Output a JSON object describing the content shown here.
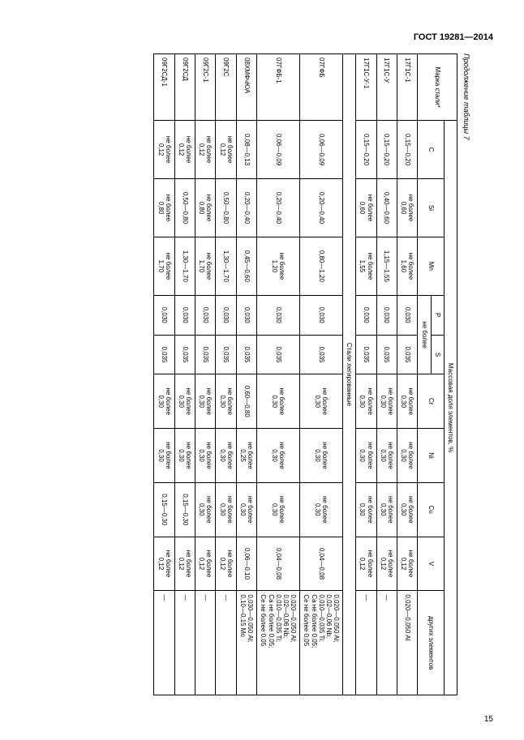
{
  "doc_header": "ГОСТ 19281—2014",
  "caption": "Продолжение таблицы 7",
  "page_number": "15",
  "columns": {
    "grade": "Марка стали*",
    "mass_fraction": "Массовая доля элементов, %",
    "C": "C",
    "Si": "Si",
    "Mn": "Mn",
    "P": "P",
    "S": "S",
    "Cr": "Cr",
    "Ni": "Ni",
    "Cu": "Cu",
    "V": "V",
    "other": "других элементов",
    "not_more": "не более"
  },
  "section": "Стали легированные",
  "labels": {
    "nb": "не более"
  },
  "rows1": [
    {
      "grade": "17Г1С-1",
      "C": "0,15—0,20",
      "Si": "не более\n0,60",
      "Mn": "не более\n1,60",
      "P": "0,030",
      "S": "0,035",
      "Cr": "не более\n0,30",
      "Ni": "не более\n0,30",
      "Cu": "не более\n0,30",
      "V": "не более\n0,12",
      "other": "0,020—0,050 Al"
    },
    {
      "grade": "17Г1С-У",
      "C": "0,15—0,20",
      "Si": "0,40—0,60",
      "Mn": "1,15—1,55",
      "P": "0,030",
      "S": "0,035",
      "Cr": "не более\n0,30",
      "Ni": "не более\n0,30",
      "Cu": "не более\n0,30",
      "V": "не более\n0,12",
      "other": "—"
    },
    {
      "grade": "17Г1С-У-1",
      "C": "0,15—0,20",
      "Si": "не более\n0,60",
      "Mn": "не более\n1,55",
      "P": "0,030",
      "S": "0,035",
      "Cr": "не более\n0,30",
      "Ni": "не более\n0,30",
      "Cu": "не более\n0,30",
      "V": "не более\n0,12",
      "other": "—"
    }
  ],
  "rows2": [
    {
      "grade": "07ГФБ",
      "C": "0,06—0,09",
      "Si": "0,20—0,40",
      "Mn": "0,80—1,20",
      "P": "0,030",
      "S": "0,035",
      "Cr": "не более\n0,30",
      "Ni": "не более\n0,30",
      "Cu": "не более\n0,30",
      "V": "0,04—0,08",
      "other": "0,020—0,050 Al;\n0,02—0,06 Nb;\n0,010—0,035 Ti;\nCa не более 0,05;\nCe не более 0,05"
    },
    {
      "grade": "07ГФБ-1",
      "C": "0,06—0,09",
      "Si": "0,20—0,40",
      "Mn": "не более\n1,20",
      "P": "0,030",
      "S": "0,035",
      "Cr": "не более\n0,30",
      "Ni": "не более\n0,30",
      "Cu": "не более\n0,30",
      "V": "0,04—0,08",
      "other": "0,020—0,050 Al;\n0,02—0,06 Nb;\n0,010—0,035 Ti;\nCa не более 0,05;\nCe не более 0,05"
    },
    {
      "grade": "08ХМФчЮА",
      "C": "0,08—0,13",
      "Si": "0,20—0,40",
      "Mn": "0,45—0,60",
      "P": "0,030",
      "S": "0,035",
      "Cr": "0,60—0,80",
      "Ni": "не более\n0,25",
      "Cu": "не более\n0,30",
      "V": "0,06—0,10",
      "other": "0,030—0,050 Al;\n0,10—0,15 Mo"
    },
    {
      "grade": "09Г2С",
      "C": "не более\n0,12",
      "Si": "0,50—0,80",
      "Mn": "1,30—1,70",
      "P": "0,030",
      "S": "0,035",
      "Cr": "не более\n0,30",
      "Ni": "не более\n0,30",
      "Cu": "не более\n0,30",
      "V": "не более\n0,12",
      "other": "—"
    },
    {
      "grade": "09Г2С-1",
      "C": "не более\n0,12",
      "Si": "не более\n0,80",
      "Mn": "не более\n1,70",
      "P": "0,030",
      "S": "0,035",
      "Cr": "не более\n0,30",
      "Ni": "не более\n0,30",
      "Cu": "не более\n0,30",
      "V": "не более\n0,12",
      "other": "—"
    },
    {
      "grade": "09Г2СД",
      "C": "не более\n0,12",
      "Si": "0,50—0,80",
      "Mn": "1,30—1,70",
      "P": "0,030",
      "S": "0,035",
      "Cr": "не более\n0,30",
      "Ni": "не более\n0,30",
      "Cu": "0,15—0,30",
      "V": "не более\n0,12",
      "other": "—"
    },
    {
      "grade": "09Г2СД-1",
      "C": "не более\n0,12",
      "Si": "не более\n0,80",
      "Mn": "не более\n1,70",
      "P": "0,030",
      "S": "0,035",
      "Cr": "не более\n0,30",
      "Ni": "не более\n0,30",
      "Cu": "0,15—0,30",
      "V": "не более\n0,12",
      "other": "—"
    }
  ],
  "col_widths": [
    "64",
    "56",
    "56",
    "56",
    "38",
    "38",
    "52",
    "52",
    "52",
    "52",
    "100"
  ]
}
